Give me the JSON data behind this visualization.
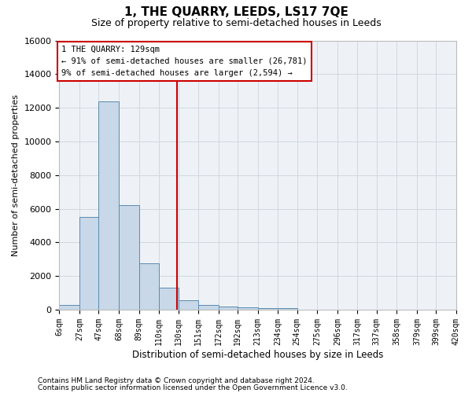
{
  "title": "1, THE QUARRY, LEEDS, LS17 7QE",
  "subtitle": "Size of property relative to semi-detached houses in Leeds",
  "xlabel": "Distribution of semi-detached houses by size in Leeds",
  "ylabel": "Number of semi-detached properties",
  "footnote1": "Contains HM Land Registry data © Crown copyright and database right 2024.",
  "footnote2": "Contains public sector information licensed under the Open Government Licence v3.0.",
  "bin_labels": [
    "6sqm",
    "27sqm",
    "47sqm",
    "68sqm",
    "89sqm",
    "110sqm",
    "130sqm",
    "151sqm",
    "172sqm",
    "192sqm",
    "213sqm",
    "234sqm",
    "254sqm",
    "275sqm",
    "296sqm",
    "317sqm",
    "337sqm",
    "358sqm",
    "379sqm",
    "399sqm",
    "420sqm"
  ],
  "bar_values": [
    300,
    5500,
    12400,
    6200,
    2750,
    1300,
    550,
    300,
    200,
    150,
    100,
    100,
    0,
    0,
    0,
    0,
    0,
    0,
    0,
    0
  ],
  "bar_color": "#c8d8e8",
  "bar_edge_color": "#5a8ab0",
  "property_line_x": 129,
  "annotation_title": "1 THE QUARRY: 129sqm",
  "annotation_line1": "← 91% of semi-detached houses are smaller (26,781)",
  "annotation_line2": "9% of semi-detached houses are larger (2,594) →",
  "annotation_box_color": "#cc0000",
  "ylim": [
    0,
    16000
  ],
  "yticks": [
    0,
    2000,
    4000,
    6000,
    8000,
    10000,
    12000,
    14000,
    16000
  ],
  "grid_color": "#d0d8e0",
  "bg_color": "#eef2f7",
  "bin_edges": [
    6,
    27,
    47,
    68,
    89,
    110,
    130,
    151,
    172,
    192,
    213,
    234,
    254,
    275,
    296,
    317,
    337,
    358,
    379,
    399,
    420
  ]
}
